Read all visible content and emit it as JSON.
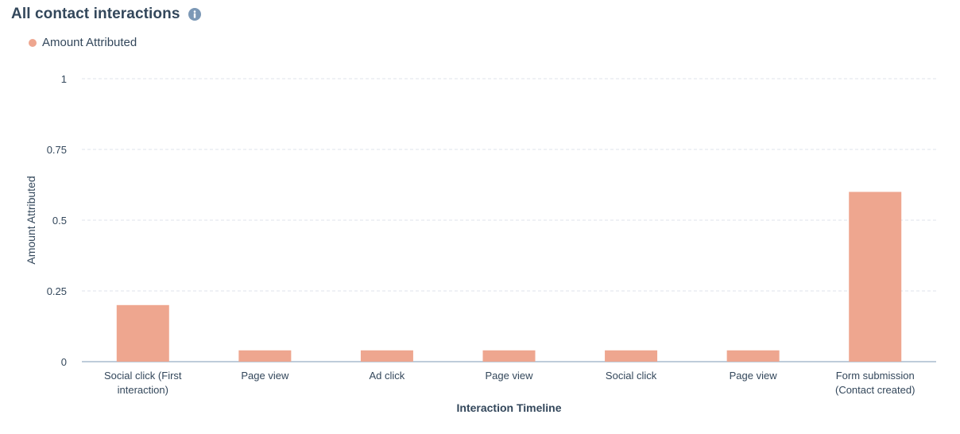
{
  "header": {
    "title": "All contact interactions",
    "info_icon": "info-icon"
  },
  "legend": {
    "label": "Amount Attributed",
    "color": "#eea68f"
  },
  "chart_data": {
    "type": "bar",
    "categories": [
      [
        "Social click (First",
        "interaction)"
      ],
      [
        "Page view"
      ],
      [
        "Ad click"
      ],
      [
        "Page view"
      ],
      [
        "Social click"
      ],
      [
        "Page view"
      ],
      [
        "Form submission",
        "(Contact created)"
      ]
    ],
    "series": [
      {
        "name": "Amount Attributed",
        "values": [
          0.2,
          0.04,
          0.04,
          0.04,
          0.04,
          0.04,
          0.6
        ],
        "color": "#eea68f"
      }
    ],
    "xlabel": "Interaction Timeline",
    "ylabel": "Amount Attributed",
    "ylim": [
      0,
      1
    ],
    "yticks": [
      {
        "value": 0,
        "label": "0"
      },
      {
        "value": 0.25,
        "label": "0.25"
      },
      {
        "value": 0.5,
        "label": "0.5"
      },
      {
        "value": 0.75,
        "label": "0.75"
      },
      {
        "value": 1,
        "label": "1"
      }
    ],
    "grid": true,
    "legend_position": "top-left"
  }
}
